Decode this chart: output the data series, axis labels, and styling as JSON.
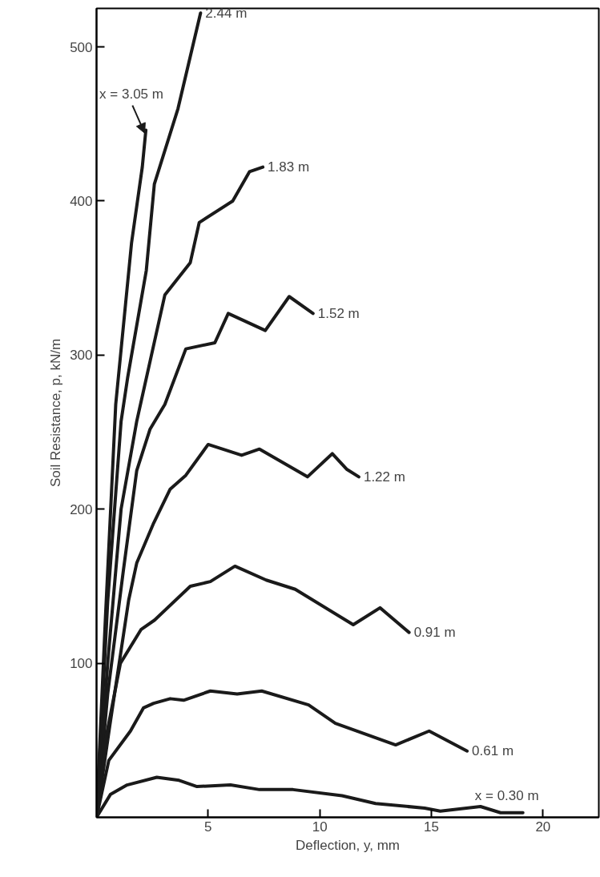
{
  "chart_data": {
    "type": "line",
    "xlabel": "Deflection, y, mm",
    "ylabel": "Soil Resistance, p, kN/m",
    "xlim": [
      0,
      22.5
    ],
    "ylim": [
      0,
      525
    ],
    "xticks": [
      5,
      10,
      15,
      20
    ],
    "yticks": [
      100,
      200,
      300,
      400,
      500
    ],
    "grid": false,
    "legend": false,
    "marker": "none",
    "line_style": "solid",
    "series": [
      {
        "name": "x = 3.05 m",
        "color": "#1a1a1a",
        "x": [
          0,
          0.4,
          0.86,
          1.57,
          2.05,
          2.21
        ],
        "values": [
          0,
          130,
          268,
          373,
          422,
          446
        ]
      },
      {
        "name": "2.44 m",
        "color": "#1a1a1a",
        "x": [
          0,
          0.5,
          1.1,
          1.39,
          2.23,
          2.59,
          3.65,
          4.66
        ],
        "values": [
          0,
          140,
          257,
          285,
          355,
          411,
          460,
          522
        ]
      },
      {
        "name": "1.83 m",
        "color": "#1a1a1a",
        "x": [
          0,
          0.5,
          1.1,
          1.8,
          3.06,
          4.2,
          4.6,
          6.1,
          6.85,
          7.45
        ],
        "values": [
          0,
          100,
          200,
          257,
          339,
          360,
          386,
          400,
          419,
          422
        ]
      },
      {
        "name": "1.52 m",
        "color": "#1a1a1a",
        "x": [
          0,
          0.5,
          1.2,
          1.8,
          2.4,
          3.06,
          4.0,
          5.3,
          5.9,
          7.56,
          8.63,
          9.7
        ],
        "values": [
          0,
          80,
          160,
          225,
          252,
          268,
          304,
          308,
          327,
          316,
          338,
          327
        ]
      },
      {
        "name": "1.22 m",
        "color": "#1a1a1a",
        "x": [
          0,
          0.6,
          1.44,
          1.8,
          2.56,
          3.3,
          4.0,
          5.0,
          6.5,
          7.3,
          9.45,
          10.56,
          11.2,
          11.75
        ],
        "values": [
          0,
          60,
          141,
          165,
          191,
          213,
          222,
          242,
          235,
          239,
          221,
          236,
          226,
          221
        ]
      },
      {
        "name": "0.91 m",
        "color": "#1a1a1a",
        "x": [
          0,
          0.4,
          1.07,
          2.0,
          2.6,
          4.2,
          5.1,
          6.2,
          7.6,
          8.9,
          11.5,
          12.7,
          14.0
        ],
        "values": [
          0,
          50,
          100,
          122,
          128,
          150,
          153,
          163,
          154,
          148,
          125,
          136,
          120
        ]
      },
      {
        "name": "0.61 m",
        "color": "#1a1a1a",
        "x": [
          0,
          0.55,
          1.52,
          2.1,
          2.56,
          3.3,
          3.9,
          5.1,
          6.3,
          7.4,
          9.5,
          10.7,
          13.4,
          14.9,
          16.6
        ],
        "values": [
          0,
          37,
          56,
          71,
          74,
          77,
          76,
          82,
          80,
          82,
          73,
          61,
          47,
          56,
          43
        ]
      },
      {
        "name": "x = 0.30 m",
        "color": "#1a1a1a",
        "x": [
          0,
          0.63,
          1.37,
          2.7,
          3.7,
          4.5,
          6.0,
          7.3,
          8.8,
          11.0,
          12.5,
          14.7,
          15.4,
          17.2,
          18.1,
          19.1
        ],
        "values": [
          0,
          15,
          21,
          26,
          24,
          20,
          21,
          18,
          18,
          14,
          9,
          6,
          4,
          7,
          3,
          3
        ]
      }
    ]
  }
}
